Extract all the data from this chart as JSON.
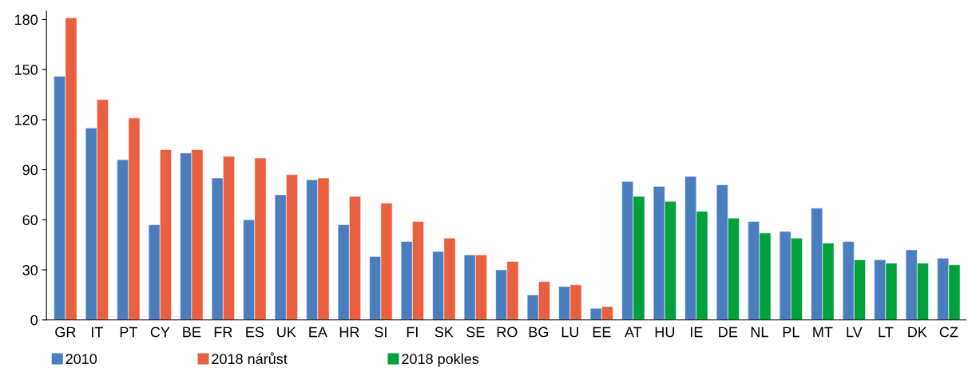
{
  "chart_data": {
    "type": "bar",
    "categories": [
      "GR",
      "IT",
      "PT",
      "CY",
      "BE",
      "FR",
      "ES",
      "UK",
      "EA",
      "HR",
      "SI",
      "FI",
      "SK",
      "SE",
      "RO",
      "BG",
      "LU",
      "EE",
      "AT",
      "HU",
      "IE",
      "DE",
      "NL",
      "PL",
      "MT",
      "LV",
      "LT",
      "DK",
      "CZ"
    ],
    "series": [
      {
        "name": "2010",
        "color": "#4a7ebf",
        "values": [
          146,
          115,
          96,
          57,
          100,
          85,
          60,
          75,
          84,
          57,
          38,
          47,
          41,
          39,
          30,
          15,
          20,
          7,
          83,
          80,
          86,
          81,
          59,
          53,
          67,
          47,
          36,
          42,
          37
        ]
      },
      {
        "name": "2018 nárůst",
        "color": "#e8603f",
        "values": [
          181,
          132,
          121,
          102,
          102,
          98,
          97,
          87,
          85,
          74,
          70,
          59,
          49,
          39,
          35,
          23,
          21,
          8,
          null,
          null,
          null,
          null,
          null,
          null,
          null,
          null,
          null,
          null,
          null
        ]
      },
      {
        "name": "2018 pokles",
        "color": "#00a13a",
        "values": [
          null,
          null,
          null,
          null,
          null,
          null,
          null,
          null,
          null,
          null,
          null,
          null,
          null,
          null,
          null,
          null,
          null,
          null,
          74,
          71,
          65,
          61,
          52,
          49,
          46,
          36,
          34,
          34,
          33
        ]
      }
    ],
    "ylim": [
      0,
      185
    ],
    "yticks": [
      0,
      30,
      60,
      90,
      120,
      150,
      180
    ],
    "grid": false,
    "legend": "bottom left"
  }
}
